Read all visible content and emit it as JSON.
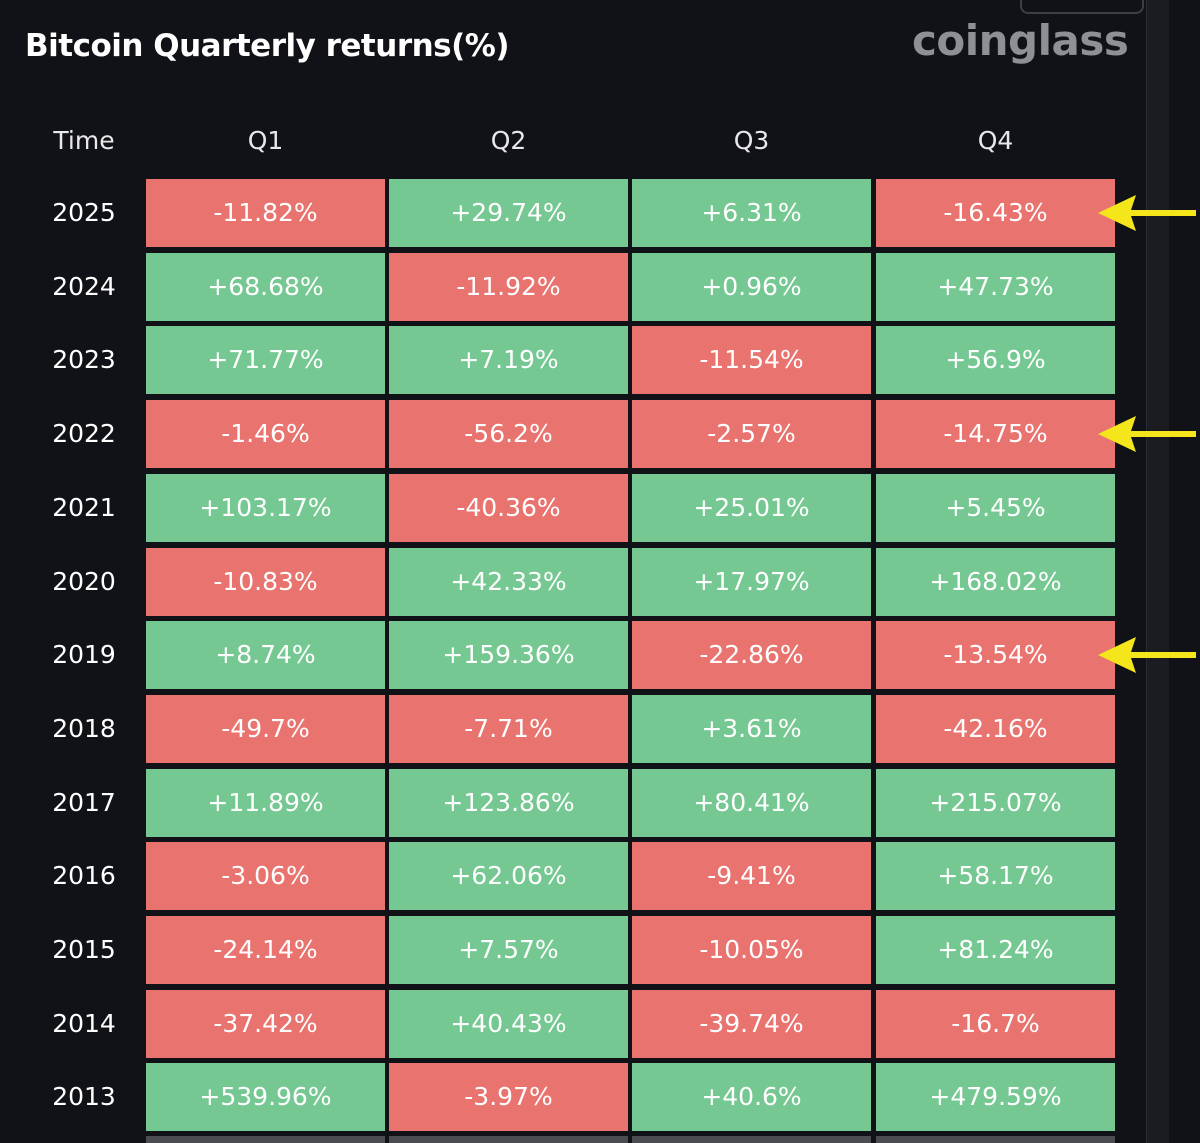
{
  "header": {
    "title": "Bitcoin Quarterly returns(%)",
    "brand": "coinglass"
  },
  "colors": {
    "background": "#111217",
    "positive": "#76c893",
    "negative": "#e8736f",
    "arrow": "#f5e61c"
  },
  "chart_data": {
    "type": "heatmap",
    "title": "Bitcoin Quarterly returns(%)",
    "row_header": "Time",
    "columns": [
      "Q1",
      "Q2",
      "Q3",
      "Q4"
    ],
    "rows": [
      {
        "year": "2025",
        "values": [
          "-11.82%",
          "+29.74%",
          "+6.31%",
          "-16.43%"
        ]
      },
      {
        "year": "2024",
        "values": [
          "+68.68%",
          "-11.92%",
          "+0.96%",
          "+47.73%"
        ]
      },
      {
        "year": "2023",
        "values": [
          "+71.77%",
          "+7.19%",
          "-11.54%",
          "+56.9%"
        ]
      },
      {
        "year": "2022",
        "values": [
          "-1.46%",
          "-56.2%",
          "-2.57%",
          "-14.75%"
        ]
      },
      {
        "year": "2021",
        "values": [
          "+103.17%",
          "-40.36%",
          "+25.01%",
          "+5.45%"
        ]
      },
      {
        "year": "2020",
        "values": [
          "-10.83%",
          "+42.33%",
          "+17.97%",
          "+168.02%"
        ]
      },
      {
        "year": "2019",
        "values": [
          "+8.74%",
          "+159.36%",
          "-22.86%",
          "-13.54%"
        ]
      },
      {
        "year": "2018",
        "values": [
          "-49.7%",
          "-7.71%",
          "+3.61%",
          "-42.16%"
        ]
      },
      {
        "year": "2017",
        "values": [
          "+11.89%",
          "+123.86%",
          "+80.41%",
          "+215.07%"
        ]
      },
      {
        "year": "2016",
        "values": [
          "-3.06%",
          "+62.06%",
          "-9.41%",
          "+58.17%"
        ]
      },
      {
        "year": "2015",
        "values": [
          "-24.14%",
          "+7.57%",
          "-10.05%",
          "+81.24%"
        ]
      },
      {
        "year": "2014",
        "values": [
          "-37.42%",
          "+40.43%",
          "-39.74%",
          "-16.7%"
        ]
      },
      {
        "year": "2013",
        "values": [
          "+539.96%",
          "-3.97%",
          "+40.6%",
          "+479.59%"
        ]
      }
    ],
    "highlighted_rows": [
      "2025",
      "2022",
      "2019"
    ]
  }
}
